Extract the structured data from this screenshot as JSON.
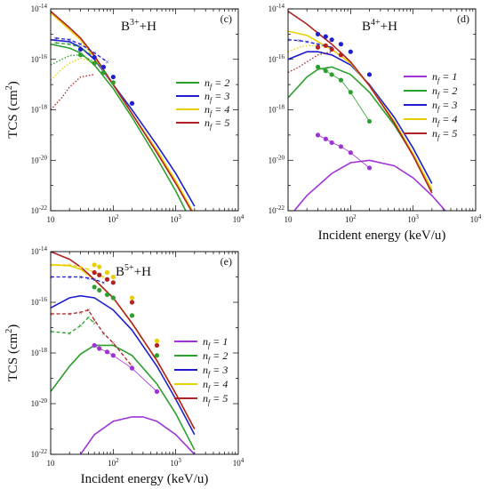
{
  "chart_data": [
    {
      "type": "line",
      "panel": "(c)",
      "title": "B3++H",
      "title_base": "B",
      "title_sup": "3+",
      "title_rest": "+H",
      "xlabel": "",
      "ylabel": "TCS (cm2)",
      "ylabel_text": "TCS (cm",
      "ylabel_sup": "2",
      "ylabel_close": ")",
      "x_scale": "log",
      "y_scale": "log",
      "xlim": [
        10,
        10000
      ],
      "ylim": [
        1e-22,
        1e-14
      ],
      "x_tick_labels": [
        "10",
        "10^2",
        "10^3",
        "10^4"
      ],
      "y_tick_labels": [
        "10^-22",
        "10^-20",
        "10^-18",
        "10^-16",
        "10^-14"
      ],
      "legend_position": "right",
      "legend": [
        {
          "label": "n_f = 2",
          "color": "#2ca02c"
        },
        {
          "label": "n_f = 3",
          "color": "#1f1fd0"
        },
        {
          "label": "n_f = 4",
          "color": "#e8d000"
        },
        {
          "label": "n_f = 5",
          "color": "#b22222"
        }
      ],
      "series": [
        {
          "name": "n_f = 2",
          "color": "#2ca02c",
          "style": "solid",
          "x": [
            10,
            20,
            30,
            50,
            100,
            200,
            500,
            1000,
            2000
          ],
          "y": [
            4e-16,
            2.8e-16,
            1.8e-16,
            6e-17,
            7e-18,
            5e-19,
            1.2e-20,
            6e-22,
            2e-23
          ]
        },
        {
          "name": "n_f = 3",
          "color": "#1f1fd0",
          "style": "solid",
          "x": [
            10,
            20,
            30,
            50,
            100,
            200,
            500,
            1000,
            2000
          ],
          "y": [
            6e-16,
            5e-16,
            3e-16,
            1e-16,
            1e-17,
            1e-18,
            4e-20,
            3e-21,
            1.5e-22
          ]
        },
        {
          "name": "n_f = 4",
          "color": "#e8d000",
          "style": "solid",
          "x": [
            10,
            20,
            30,
            50,
            100,
            200,
            500,
            1000,
            2000
          ],
          "y": [
            7e-15,
            1.5e-15,
            6e-16,
            1.2e-16,
            1e-17,
            7e-19,
            2.5e-20,
            1.5e-21,
            7e-23
          ]
        },
        {
          "name": "n_f = 5",
          "color": "#b22222",
          "style": "solid",
          "x": [
            10,
            20,
            30,
            50,
            100,
            200,
            500,
            1000,
            2000
          ],
          "y": [
            8e-15,
            1.8e-15,
            7e-16,
            1.4e-16,
            1e-17,
            7e-19,
            2e-20,
            1.2e-21,
            6e-23
          ]
        },
        {
          "name": "",
          "color": "#2ca02c",
          "style": "dotted",
          "x": [
            10,
            15,
            20,
            30,
            50,
            80
          ],
          "y": [
            6e-17,
            1e-16,
            1.4e-16,
            1.5e-16,
            8e-17,
            4e-17
          ]
        },
        {
          "name": "",
          "color": "#e8d000",
          "style": "dotted",
          "x": [
            10,
            15,
            20,
            30,
            50
          ],
          "y": [
            1.5e-17,
            4e-17,
            7e-17,
            1.1e-16,
            8e-17
          ]
        },
        {
          "name": "",
          "color": "#b22222",
          "style": "dotted",
          "x": [
            10,
            15,
            20,
            30,
            50
          ],
          "y": [
            1e-18,
            3e-18,
            8e-18,
            2e-17,
            2.5e-17
          ]
        },
        {
          "name": "",
          "color": "#1f1fd0",
          "style": "dashed",
          "x": [
            12,
            20,
            30,
            50,
            80
          ],
          "y": [
            7e-16,
            6e-16,
            4e-16,
            1.8e-16,
            8e-17
          ]
        },
        {
          "name": "",
          "color": "#2ca02c",
          "style": "dashed",
          "x": [
            12,
            20,
            30,
            50
          ],
          "y": [
            4.5e-16,
            4e-16,
            3e-16,
            1.2e-16
          ]
        },
        {
          "name": "",
          "color": "#1f1fd0",
          "style": "markers",
          "x": [
            30,
            50,
            70,
            100,
            200
          ],
          "y": [
            2.5e-16,
            1.2e-16,
            5e-17,
            2e-17,
            1.8e-18
          ]
        },
        {
          "name": "",
          "color": "#2ca02c",
          "style": "markers",
          "x": [
            30,
            50,
            70,
            100
          ],
          "y": [
            1.5e-16,
            7e-17,
            3e-17,
            1.2e-17
          ]
        }
      ]
    },
    {
      "type": "line",
      "panel": "(d)",
      "title": "B4++H",
      "title_base": "B",
      "title_sup": "4+",
      "title_rest": "+H",
      "xlabel": "Incident energy (keV/u)",
      "ylabel": "",
      "x_scale": "log",
      "y_scale": "log",
      "xlim": [
        10,
        10000
      ],
      "ylim": [
        1e-22,
        1e-14
      ],
      "x_tick_labels": [
        "10",
        "10^2",
        "10^3",
        "10^4"
      ],
      "y_tick_labels": [
        "10^-22",
        "10^-20",
        "10^-18",
        "10^-16",
        "10^-14"
      ],
      "legend_position": "right",
      "legend": [
        {
          "label": "n_f = 1",
          "color": "#a032d8"
        },
        {
          "label": "n_f = 2",
          "color": "#2ca02c"
        },
        {
          "label": "n_f = 3",
          "color": "#1f1fd0"
        },
        {
          "label": "n_f = 4",
          "color": "#e8d000"
        },
        {
          "label": "n_f = 5",
          "color": "#b22222"
        }
      ],
      "series": [
        {
          "name": "n_f = 1",
          "color": "#a032d8",
          "style": "solid",
          "x": [
            10,
            20,
            50,
            100,
            200,
            500,
            1000,
            2000,
            5000
          ],
          "y": [
            5e-23,
            4e-22,
            3e-21,
            8e-21,
            1e-20,
            6e-21,
            2e-21,
            4e-22,
            3e-23
          ]
        },
        {
          "name": "n_f = 2",
          "color": "#2ca02c",
          "style": "solid",
          "x": [
            10,
            20,
            30,
            50,
            100,
            200,
            500,
            1000,
            2000
          ],
          "y": [
            3e-18,
            2e-17,
            4e-17,
            5e-17,
            2.5e-17,
            5e-18,
            2.5e-19,
            1.6e-20,
            6e-22
          ]
        },
        {
          "name": "n_f = 3",
          "color": "#1f1fd0",
          "style": "solid",
          "x": [
            10,
            20,
            30,
            50,
            100,
            200,
            500,
            1000,
            2000
          ],
          "y": [
            1e-16,
            2e-16,
            2e-16,
            1.5e-16,
            6e-17,
            1e-17,
            5e-19,
            3e-20,
            1.2e-21
          ]
        },
        {
          "name": "n_f = 4",
          "color": "#e8d000",
          "style": "solid",
          "x": [
            10,
            20,
            30,
            50,
            100,
            200,
            500,
            1000,
            2000
          ],
          "y": [
            1.3e-15,
            9e-16,
            5e-16,
            2.5e-16,
            7e-17,
            9e-18,
            3.5e-19,
            1.8e-20,
            7e-22
          ]
        },
        {
          "name": "n_f = 5",
          "color": "#b22222",
          "style": "solid",
          "x": [
            10,
            20,
            30,
            50,
            100,
            200,
            500,
            1000,
            2000
          ],
          "y": [
            8e-15,
            2.5e-15,
            1.1e-15,
            4e-16,
            8e-17,
            9e-18,
            3e-19,
            1.5e-20,
            5e-22
          ]
        },
        {
          "name": "",
          "color": "#e8d000",
          "style": "dotted",
          "x": [
            10,
            15,
            20,
            30,
            50
          ],
          "y": [
            2e-16,
            3e-16,
            3.5e-16,
            3.5e-16,
            3e-16
          ]
        },
        {
          "name": "",
          "color": "#b22222",
          "style": "dotted",
          "x": [
            10,
            15,
            20,
            30,
            50
          ],
          "y": [
            3e-17,
            5e-17,
            8e-17,
            1.5e-16,
            2e-16
          ]
        },
        {
          "name": "",
          "color": "#1f1fd0",
          "style": "dashed",
          "x": [
            10,
            15,
            20,
            30,
            50
          ],
          "y": [
            6e-16,
            5.5e-16,
            5e-16,
            4e-16,
            3e-16
          ]
        },
        {
          "name": "",
          "color": "#2ca02c",
          "style": "markers-line",
          "x": [
            30,
            40,
            50,
            70,
            100,
            200
          ],
          "y": [
            5e-17,
            3.5e-17,
            2.5e-17,
            1.5e-17,
            5e-18,
            3.5e-19
          ]
        },
        {
          "name": "",
          "color": "#a032d8",
          "style": "markers-line",
          "x": [
            30,
            40,
            50,
            70,
            100,
            200
          ],
          "y": [
            1e-19,
            7e-20,
            5e-20,
            3.5e-20,
            2e-20,
            5e-21
          ]
        },
        {
          "name": "",
          "color": "#1f1fd0",
          "style": "markers",
          "x": [
            30,
            40,
            50,
            70,
            100,
            200
          ],
          "y": [
            1e-15,
            8e-16,
            6e-16,
            4e-16,
            2e-16,
            2.5e-17
          ]
        },
        {
          "name": "",
          "color": "#b22222",
          "style": "markers",
          "x": [
            30,
            40,
            50,
            70
          ],
          "y": [
            3e-16,
            3.5e-16,
            2.5e-16,
            1.5e-16
          ]
        }
      ]
    },
    {
      "type": "line",
      "panel": "(e)",
      "title": "B5++H",
      "title_base": "B",
      "title_sup": "5+",
      "title_rest": "+H",
      "xlabel": "Incident energy (keV/u)",
      "ylabel": "TCS (cm2)",
      "ylabel_text": "TCS (cm",
      "ylabel_sup": "2",
      "ylabel_close": ")",
      "x_scale": "log",
      "y_scale": "log",
      "xlim": [
        10,
        10000
      ],
      "ylim": [
        1e-22,
        1e-14
      ],
      "x_tick_labels": [
        "10",
        "10^2",
        "10^3",
        "10^4"
      ],
      "y_tick_labels": [
        "10^-22",
        "10^-20",
        "10^-18",
        "10^-16",
        "10^-14"
      ],
      "legend_position": "right",
      "legend": [
        {
          "label": "n_f = 1",
          "color": "#a032d8"
        },
        {
          "label": "n_f = 2",
          "color": "#2ca02c"
        },
        {
          "label": "n_f = 3",
          "color": "#1f1fd0"
        },
        {
          "label": "n_f = 4",
          "color": "#e8d000"
        },
        {
          "label": "n_f = 5",
          "color": "#b22222"
        }
      ],
      "series": [
        {
          "name": "n_f = 1",
          "color": "#a032d8",
          "style": "solid",
          "x": [
            30,
            50,
            100,
            200,
            300,
            500,
            1000,
            2000,
            3000
          ],
          "y": [
            1e-22,
            6e-22,
            2e-21,
            3e-21,
            3e-21,
            2e-21,
            6e-22,
            1e-22,
            2e-23
          ]
        },
        {
          "name": "n_f = 2",
          "color": "#2ca02c",
          "style": "solid",
          "x": [
            10,
            20,
            30,
            50,
            100,
            200,
            500,
            1000,
            2000
          ],
          "y": [
            3e-20,
            3e-19,
            9e-19,
            2e-18,
            2e-18,
            8e-19,
            6e-20,
            4e-21,
            1.5e-22
          ]
        },
        {
          "name": "n_f = 3",
          "color": "#1f1fd0",
          "style": "solid",
          "x": [
            10,
            20,
            30,
            50,
            100,
            200,
            500,
            1000,
            2000
          ],
          "y": [
            6e-17,
            1.5e-16,
            1.8e-16,
            1.5e-16,
            5e-17,
            8e-18,
            3e-19,
            1.5e-20,
            6e-22
          ]
        },
        {
          "name": "n_f = 4",
          "color": "#e8d000",
          "style": "solid",
          "x": [
            10,
            20,
            30,
            50,
            100,
            200,
            500,
            1000,
            2000
          ],
          "y": [
            3e-15,
            2.8e-15,
            2e-15,
            8e-16,
            1.5e-16,
            1.5e-17,
            5e-19,
            2.5e-20,
            1e-21
          ]
        },
        {
          "name": "n_f = 5",
          "color": "#b22222",
          "style": "solid",
          "x": [
            10,
            20,
            30,
            50,
            100,
            200,
            500,
            1000,
            2000
          ],
          "y": [
            1e-14,
            5e-15,
            2.5e-15,
            8e-16,
            1.5e-16,
            1.5e-17,
            5e-19,
            2.5e-20,
            1e-21
          ]
        },
        {
          "name": "",
          "color": "#e8d000",
          "style": "dashed",
          "x": [
            10,
            20,
            30,
            40,
            50,
            70
          ],
          "y": [
            3e-15,
            3e-15,
            2.5e-15,
            2e-15,
            1.5e-15,
            1e-15
          ]
        },
        {
          "name": "",
          "color": "#1f1fd0",
          "style": "dashed",
          "x": [
            10,
            20,
            30,
            40,
            50,
            70
          ],
          "y": [
            1e-15,
            1e-15,
            1e-15,
            9e-16,
            8e-16,
            6e-16
          ]
        },
        {
          "name": "",
          "color": "#b22222",
          "style": "dashed",
          "x": [
            10,
            20,
            30,
            40,
            50,
            70,
            100,
            200
          ],
          "y": [
            3.5e-17,
            3.5e-17,
            4e-17,
            5e-17,
            2e-17,
            6e-18,
            2.5e-18,
            3e-19
          ]
        },
        {
          "name": "",
          "color": "#2ca02c",
          "style": "dashed",
          "x": [
            10,
            20,
            30,
            40,
            50
          ],
          "y": [
            7e-18,
            6e-18,
            1.2e-17,
            2.5e-17,
            1.5e-17
          ]
        },
        {
          "name": "",
          "color": "#a032d8",
          "style": "markers-line",
          "x": [
            50,
            60,
            80,
            100,
            200,
            500
          ],
          "y": [
            2e-18,
            1.5e-18,
            1.1e-18,
            8e-19,
            2.5e-19,
            3e-20
          ]
        },
        {
          "name": "",
          "color": "#2ca02c",
          "style": "markers",
          "x": [
            50,
            60,
            80,
            100,
            200,
            500
          ],
          "y": [
            4e-16,
            3e-16,
            2e-16,
            1.5e-16,
            3e-17,
            8e-19
          ]
        },
        {
          "name": "",
          "color": "#e8d000",
          "style": "markers",
          "x": [
            50,
            60,
            80,
            100,
            200,
            500
          ],
          "y": [
            3e-15,
            2.5e-15,
            1.5e-15,
            1e-15,
            1.5e-16,
            3e-18
          ]
        },
        {
          "name": "",
          "color": "#b22222",
          "style": "markers",
          "x": [
            50,
            60,
            80,
            100,
            200,
            500
          ],
          "y": [
            1.5e-15,
            1.2e-15,
            8e-16,
            6e-16,
            1e-16,
            2e-18
          ]
        }
      ]
    }
  ]
}
